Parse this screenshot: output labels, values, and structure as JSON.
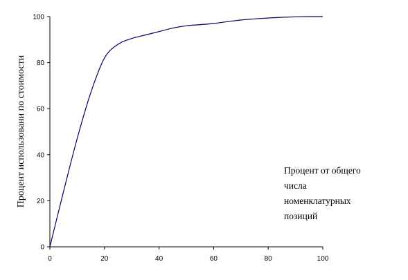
{
  "chart_data": {
    "type": "line",
    "title": "",
    "ylabel": "Процент использовани по стоимости",
    "xlabel_lines": [
      "Процент от общего",
      "числа",
      "номенклатурных",
      "позиций"
    ],
    "xlim": [
      0,
      100
    ],
    "ylim": [
      0,
      100
    ],
    "x_ticks": [
      0,
      20,
      40,
      60,
      80,
      100
    ],
    "y_ticks": [
      0,
      20,
      40,
      60,
      80,
      100
    ],
    "grid": false,
    "legend": "none",
    "line_color": "#000066",
    "series": [
      {
        "x": [
          0,
          5,
          10,
          15,
          20,
          25,
          30,
          35,
          40,
          45,
          50,
          55,
          60,
          65,
          70,
          75,
          80,
          85,
          90,
          95,
          100
        ],
        "y": [
          0,
          24,
          47,
          67,
          82,
          88,
          90.5,
          92,
          93.5,
          95,
          96,
          96.5,
          97,
          97.8,
          98.5,
          99,
          99.4,
          99.7,
          99.9,
          100,
          100
        ]
      }
    ]
  }
}
